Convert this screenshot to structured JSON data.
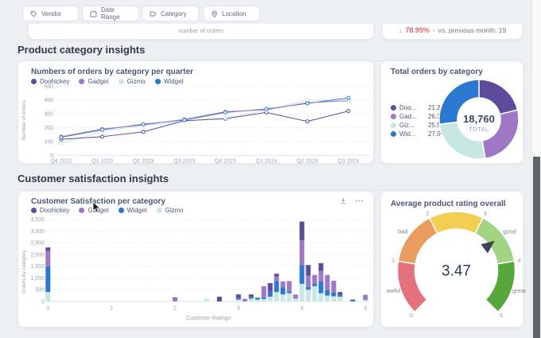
{
  "filters": {
    "items": [
      {
        "label": "Vendor"
      },
      {
        "label": "Date Range"
      },
      {
        "label": "Category"
      },
      {
        "label": "Location"
      }
    ]
  },
  "kpi": {
    "axis_label": "number of orders",
    "arrow": "↓",
    "pct": "78.95%",
    "dot": "•",
    "comparison": "vs. previous month: 19"
  },
  "sections": {
    "product": "Product category insights",
    "customer": "Customer satisfaction insights"
  },
  "colors": {
    "doohickey": "#5F4B9B",
    "gadget": "#9F78C5",
    "gizmo": "#C7E7E4",
    "widget": "#2A78D0",
    "negative_red": "#D6646F"
  },
  "line": {
    "title": "Numbers of orders by category per quarter",
    "legend": [
      "Doohickey",
      "Gadget",
      "Gizmo",
      "Widget"
    ]
  },
  "donut": {
    "title": "Total orders by category",
    "total_value": "18,760",
    "total_label": "TOTAL",
    "legend": [
      {
        "label": "Doo...",
        "pct": "21.2%"
      },
      {
        "label": "Gad...",
        "pct": "26.3%"
      },
      {
        "label": "Giz...",
        "pct": "25.5%"
      },
      {
        "label": "Wid...",
        "pct": "27.0%"
      }
    ]
  },
  "bar": {
    "title": "Customer Satisfaction per category",
    "legend": [
      "Doohickey",
      "Gadget",
      "Widget",
      "Gizmo"
    ]
  },
  "gauge": {
    "title": "Average product rating overall"
  },
  "chart_data": [
    {
      "type": "line",
      "title": "Numbers of orders by category per quarter",
      "x": [
        "Q4 2022",
        "Q1 2023",
        "Q2 2023",
        "Q3 2023",
        "Q4 2023",
        "Q1 2024",
        "Q2 2024",
        "Q3 2024"
      ],
      "xlabel": "",
      "ylabel": "Number of orders",
      "ylim": [
        0,
        500
      ],
      "yticks": [
        0,
        100,
        200,
        300,
        400,
        500
      ],
      "grid": "dotted-horizontal",
      "legend_position": "top",
      "series": [
        {
          "name": "Doohickey",
          "key": "doohickey",
          "values": [
            115,
            135,
            170,
            250,
            265,
            310,
            245,
            320
          ]
        },
        {
          "name": "Gadget",
          "key": "gadget",
          "values": [
            135,
            190,
            220,
            260,
            315,
            330,
            380,
            395
          ]
        },
        {
          "name": "Gizmo",
          "key": "gizmo",
          "values": [
            85,
            175,
            215,
            245,
            270,
            325,
            400,
            390
          ]
        },
        {
          "name": "Widget",
          "key": "widget",
          "values": [
            130,
            185,
            225,
            255,
            310,
            335,
            375,
            415
          ]
        }
      ]
    },
    {
      "type": "pie",
      "title": "Total orders by category",
      "total": "18,760",
      "total_label": "TOTAL",
      "legend_position": "left",
      "slices": [
        {
          "label": "Doohickey",
          "display": "Doo...",
          "pct": 21.2,
          "key": "doohickey"
        },
        {
          "label": "Gadget",
          "display": "Gad...",
          "pct": 26.3,
          "key": "gadget"
        },
        {
          "label": "Gizmo",
          "display": "Giz...",
          "pct": 25.5,
          "key": "gizmo"
        },
        {
          "label": "Widget",
          "display": "Wid...",
          "pct": 27.0,
          "key": "widget"
        }
      ]
    },
    {
      "type": "bar",
      "subtype": "stacked",
      "title": "Customer Satisfaction per category",
      "xlabel": "Customer Ratings",
      "ylabel": "Orders by category",
      "ylim": [
        0,
        3500
      ],
      "yticks": [
        0,
        500,
        1000,
        1500,
        2000,
        2500,
        3000,
        3500
      ],
      "xticks": [
        0,
        1,
        2,
        3,
        4,
        5
      ],
      "grid": "dotted-horizontal",
      "stack": [
        "gizmo",
        "widget",
        "gadget",
        "doohickey"
      ],
      "legend_order": [
        "Doohickey",
        "Gadget",
        "Widget",
        "Gizmo"
      ],
      "bars": [
        {
          "x": 0.0,
          "values": {
            "gizmo": 400,
            "widget": 1100,
            "gadget": 650,
            "doohickey": 150
          }
        },
        {
          "x": 2.0,
          "values": {
            "gizmo": 0,
            "widget": 0,
            "gadget": 140,
            "doohickey": 30
          }
        },
        {
          "x": 2.5,
          "values": {
            "gizmo": 120,
            "widget": 0,
            "gadget": 0,
            "doohickey": 0
          }
        },
        {
          "x": 2.7,
          "values": {
            "gizmo": 0,
            "widget": 0,
            "gadget": 0,
            "doohickey": 200
          }
        },
        {
          "x": 3.0,
          "values": {
            "gizmo": 80,
            "widget": 80,
            "gadget": 0,
            "doohickey": 140
          }
        },
        {
          "x": 3.1,
          "values": {
            "gizmo": 0,
            "widget": 0,
            "gadget": 110,
            "doohickey": 0
          }
        },
        {
          "x": 3.2,
          "values": {
            "gizmo": 120,
            "widget": 60,
            "gadget": 0,
            "doohickey": 120
          }
        },
        {
          "x": 3.3,
          "values": {
            "gizmo": 80,
            "widget": 80,
            "gadget": 0,
            "doohickey": 0
          }
        },
        {
          "x": 3.4,
          "values": {
            "gizmo": 100,
            "widget": 50,
            "gadget": 500,
            "doohickey": 0
          }
        },
        {
          "x": 3.5,
          "values": {
            "gizmo": 200,
            "widget": 220,
            "gadget": 0,
            "doohickey": 360
          }
        },
        {
          "x": 3.6,
          "values": {
            "gizmo": 400,
            "widget": 470,
            "gadget": 190,
            "doohickey": 120
          }
        },
        {
          "x": 3.7,
          "values": {
            "gizmo": 300,
            "widget": 300,
            "gadget": 250,
            "doohickey": 0
          }
        },
        {
          "x": 3.8,
          "values": {
            "gizmo": 350,
            "widget": 80,
            "gadget": 440,
            "doohickey": 0
          }
        },
        {
          "x": 3.9,
          "values": {
            "gizmo": 120,
            "widget": 0,
            "gadget": 170,
            "doohickey": 0
          }
        },
        {
          "x": 4.0,
          "values": {
            "gizmo": 750,
            "widget": 800,
            "gadget": 1050,
            "doohickey": 800
          }
        },
        {
          "x": 4.1,
          "values": {
            "gizmo": 500,
            "widget": 120,
            "gadget": 480,
            "doohickey": 450
          }
        },
        {
          "x": 4.2,
          "values": {
            "gizmo": 650,
            "widget": 110,
            "gadget": 370,
            "doohickey": 0
          }
        },
        {
          "x": 4.3,
          "values": {
            "gizmo": 350,
            "widget": 500,
            "gadget": 450,
            "doohickey": 330
          }
        },
        {
          "x": 4.4,
          "values": {
            "gizmo": 250,
            "widget": 230,
            "gadget": 650,
            "doohickey": 0
          }
        },
        {
          "x": 4.5,
          "values": {
            "gizmo": 220,
            "widget": 160,
            "gadget": 500,
            "doohickey": 0
          }
        },
        {
          "x": 4.6,
          "values": {
            "gizmo": 200,
            "widget": 80,
            "gadget": 0,
            "doohickey": 120
          }
        },
        {
          "x": 4.8,
          "values": {
            "gizmo": 0,
            "widget": 80,
            "gadget": 0,
            "doohickey": 0
          }
        },
        {
          "x": 5.0,
          "values": {
            "gizmo": 60,
            "widget": 0,
            "gadget": 220,
            "doohickey": 0
          }
        }
      ]
    },
    {
      "type": "gauge",
      "title": "Average product rating overall",
      "value": 3.47,
      "min": 0,
      "max": 5,
      "ticks": [
        0,
        1,
        2,
        3,
        4,
        5
      ],
      "segments": [
        {
          "from": 0,
          "to": 1,
          "label": "awful",
          "color": "#E4717C"
        },
        {
          "from": 1,
          "to": 2,
          "label": "bad",
          "color": "#EB9D60"
        },
        {
          "from": 2,
          "to": 3,
          "label": "",
          "color": "#F2CE52"
        },
        {
          "from": 3,
          "to": 4,
          "label": "good",
          "color": "#A3D483"
        },
        {
          "from": 4,
          "to": 5,
          "label": "great",
          "color": "#57A83A"
        }
      ]
    }
  ]
}
